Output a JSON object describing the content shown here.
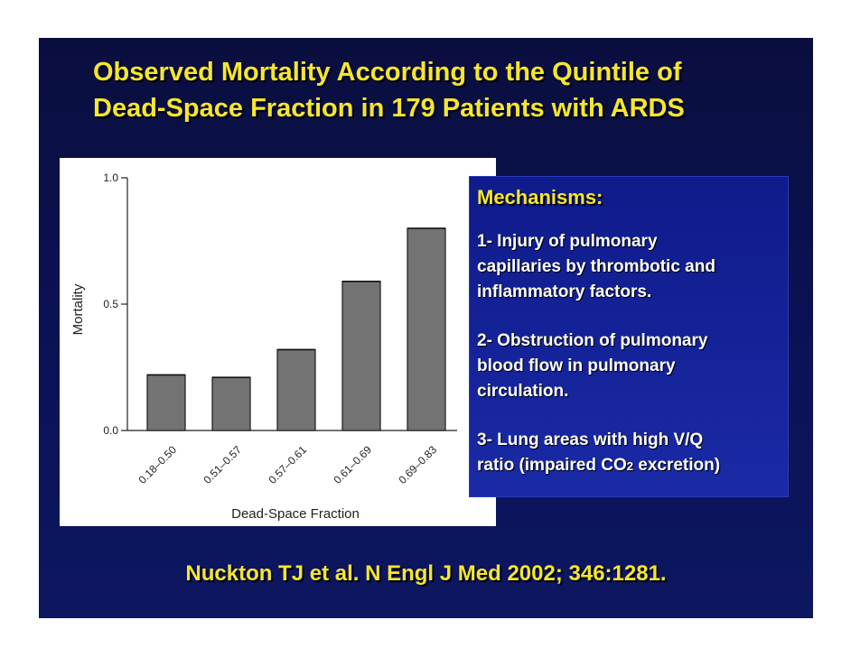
{
  "slide": {
    "title_line1": "Observed Mortality According to the Quintile of",
    "title_line2": "Dead-Space Fraction in 179 Patients with ARDS",
    "citation": "Nuckton TJ et al. N Engl J Med 2002; 346:1281."
  },
  "mechanisms": {
    "heading": "Mechanisms:",
    "item1": "1- Injury of pulmonary\ncapillaries by thrombotic and\ninflammatory factors.",
    "item2": "2- Obstruction of pulmonary\nblood flow in pulmonary\ncirculation.",
    "item3_before": "3- Lung areas with high V/Q\nratio (impaired CO",
    "item3_sub": "2",
    "item3_after": " excretion)"
  },
  "colors": {
    "title": "#f5e62e",
    "bar_fill": "#737373",
    "slide_bg": "#0b1256",
    "box_bg": "#1a2aa6"
  },
  "chart_data": {
    "type": "bar",
    "categories": [
      "0.18–0.50",
      "0.51–0.57",
      "0.57–0.61",
      "0.61–0.69",
      "0.69–0.83"
    ],
    "values": [
      0.22,
      0.21,
      0.32,
      0.59,
      0.8
    ],
    "xlabel": "Dead-Space Fraction",
    "ylabel": "Mortality",
    "ylim": [
      0.0,
      1.0
    ],
    "yticks": [
      0.0,
      0.5,
      1.0
    ],
    "ytick_labels": [
      "0.0",
      "0.5",
      "1.0"
    ],
    "grid": false
  }
}
